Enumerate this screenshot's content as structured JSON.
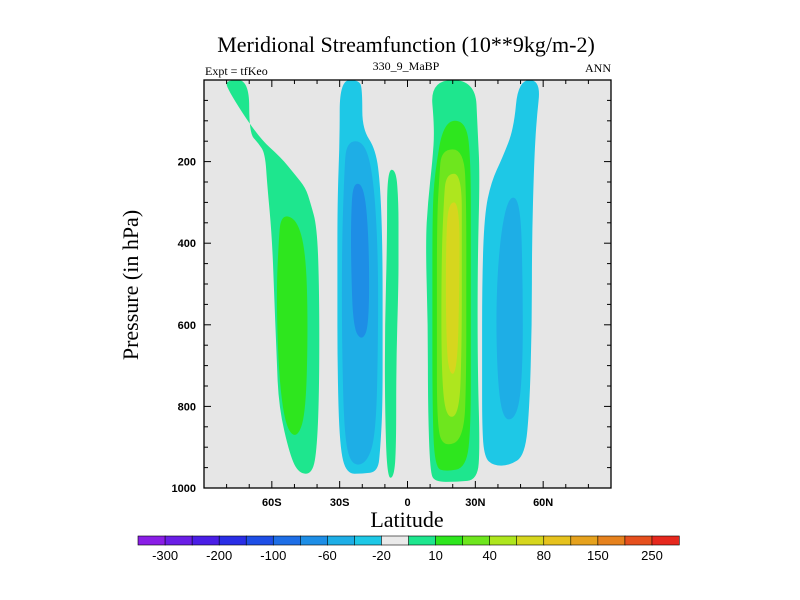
{
  "chart_data": {
    "type": "contour",
    "title": "Meridional Streamfunction (10**9kg/m-2)",
    "subtitle_left": "Expt = tfKeo",
    "subtitle_center": "330_9_MaBP",
    "subtitle_right": "ANN",
    "xlabel": "Latitude",
    "ylabel": "Pressure (in hPa)",
    "xlim": [
      -90,
      90
    ],
    "ylim": [
      1000,
      0
    ],
    "x_ticks": [
      {
        "value": -60,
        "label": "60S"
      },
      {
        "value": -30,
        "label": "30S"
      },
      {
        "value": 0,
        "label": "0"
      },
      {
        "value": 30,
        "label": "30N"
      },
      {
        "value": 60,
        "label": "60N"
      }
    ],
    "y_ticks": [
      {
        "value": 200,
        "label": "200"
      },
      {
        "value": 400,
        "label": "400"
      },
      {
        "value": 600,
        "label": "600"
      },
      {
        "value": 800,
        "label": "800"
      },
      {
        "value": 1000,
        "label": "1000"
      }
    ],
    "missing_color": "#e6e6e6",
    "colorbar": {
      "levels": [
        -300,
        -250,
        -200,
        -150,
        -100,
        -80,
        -60,
        -40,
        -20,
        -10,
        10,
        20,
        40,
        60,
        80,
        100,
        150,
        200,
        250,
        300
      ],
      "labels": [
        "-300",
        "-200",
        "-100",
        "-60",
        "-20",
        "10",
        "40",
        "80",
        "150",
        "250"
      ],
      "colors": [
        "#8a1ee6",
        "#6a1ee6",
        "#4a1ee6",
        "#2a2ee6",
        "#1e4ee6",
        "#1e6ee6",
        "#1e8ee6",
        "#1eaee6",
        "#1ec8e6",
        "#eaeaea",
        "#1ee68e",
        "#2ee61e",
        "#6ee61e",
        "#aee61e",
        "#d6d61e",
        "#e6c21e",
        "#e6a21e",
        "#e6821e",
        "#e6501e",
        "#e6281e"
      ]
    },
    "regions": [
      {
        "name": "sh-polar-cell",
        "value": 15,
        "points": [
          [
            -80,
            0
          ],
          [
            -70,
            0
          ],
          [
            -70,
            130
          ],
          [
            -66,
            155
          ],
          [
            -63,
            180
          ],
          [
            -62,
            260
          ],
          [
            -60,
            380
          ],
          [
            -59,
            520
          ],
          [
            -58,
            660
          ],
          [
            -57,
            800
          ],
          [
            -52,
            920
          ],
          [
            -48,
            965
          ],
          [
            -42,
            965
          ],
          [
            -40,
            900
          ],
          [
            -39,
            750
          ],
          [
            -39,
            520
          ],
          [
            -40,
            360
          ],
          [
            -43,
            300
          ],
          [
            -45,
            265
          ],
          [
            -50,
            230
          ],
          [
            -56,
            190
          ],
          [
            -66,
            140
          ],
          [
            -80,
            20
          ]
        ]
      },
      {
        "name": "sh-polar-core",
        "value": 25,
        "points": [
          [
            -56,
            330
          ],
          [
            -49,
            340
          ],
          [
            -45,
            420
          ],
          [
            -44,
            600
          ],
          [
            -45,
            820
          ],
          [
            -49,
            880
          ],
          [
            -54,
            850
          ],
          [
            -57,
            720
          ],
          [
            -58,
            520
          ],
          [
            -57,
            400
          ]
        ]
      },
      {
        "name": "sh-ferrel-outer",
        "value": -15,
        "points": [
          [
            -30,
            0
          ],
          [
            -21,
            0
          ],
          [
            -20,
            30
          ],
          [
            -20,
            120
          ],
          [
            -14,
            170
          ],
          [
            -12,
            260
          ],
          [
            -11,
            420
          ],
          [
            -11,
            620
          ],
          [
            -11,
            800
          ],
          [
            -12,
            900
          ],
          [
            -13,
            960
          ],
          [
            -20,
            965
          ],
          [
            -27,
            965
          ],
          [
            -30,
            900
          ],
          [
            -31,
            700
          ],
          [
            -31,
            500
          ],
          [
            -31,
            300
          ],
          [
            -30,
            150
          ]
        ]
      },
      {
        "name": "sh-ferrel-inner",
        "value": -25,
        "points": [
          [
            -27,
            150
          ],
          [
            -19,
            150
          ],
          [
            -15,
            240
          ],
          [
            -13,
            420
          ],
          [
            -13,
            650
          ],
          [
            -14,
            870
          ],
          [
            -18,
            940
          ],
          [
            -25,
            945
          ],
          [
            -28,
            870
          ],
          [
            -29,
            650
          ],
          [
            -29,
            400
          ],
          [
            -28,
            230
          ]
        ]
      },
      {
        "name": "sh-ferrel-core",
        "value": -45,
        "points": [
          [
            -24,
            250
          ],
          [
            -19,
            260
          ],
          [
            -17,
            400
          ],
          [
            -17,
            600
          ],
          [
            -20,
            640
          ],
          [
            -24,
            610
          ],
          [
            -25,
            450
          ],
          [
            -25,
            330
          ]
        ]
      },
      {
        "name": "equatorial-strip",
        "value": 15,
        "points": [
          [
            -9,
            220
          ],
          [
            -5,
            220
          ],
          [
            -4,
            300
          ],
          [
            -4,
            400
          ],
          [
            -4,
            500
          ],
          [
            -5,
            700
          ],
          [
            -5,
            900
          ],
          [
            -6,
            975
          ],
          [
            -9,
            975
          ],
          [
            -10,
            800
          ],
          [
            -10,
            600
          ],
          [
            -9,
            400
          ]
        ]
      },
      {
        "name": "nh-hadley-outer",
        "value": 15,
        "points": [
          [
            10,
            0
          ],
          [
            30,
            0
          ],
          [
            31,
            120
          ],
          [
            32,
            230
          ],
          [
            31,
            450
          ],
          [
            31,
            700
          ],
          [
            32,
            900
          ],
          [
            31,
            980
          ],
          [
            22,
            985
          ],
          [
            12,
            985
          ],
          [
            10,
            960
          ],
          [
            9,
            800
          ],
          [
            9,
            600
          ],
          [
            8,
            400
          ],
          [
            9,
            300
          ],
          [
            11,
            200
          ],
          [
            12,
            120
          ]
        ]
      },
      {
        "name": "nh-hadley-mid",
        "value": 25,
        "points": [
          [
            16,
            100
          ],
          [
            26,
            100
          ],
          [
            28,
            200
          ],
          [
            28,
            400
          ],
          [
            28,
            650
          ],
          [
            28,
            850
          ],
          [
            26,
            950
          ],
          [
            17,
            960
          ],
          [
            12,
            950
          ],
          [
            11,
            800
          ],
          [
            11,
            550
          ],
          [
            11,
            330
          ],
          [
            12,
            230
          ]
        ]
      },
      {
        "name": "nh-hadley-inner",
        "value": 50,
        "points": [
          [
            15,
            170
          ],
          [
            25,
            170
          ],
          [
            26,
            300
          ],
          [
            26,
            500
          ],
          [
            26,
            720
          ],
          [
            25,
            880
          ],
          [
            16,
            900
          ],
          [
            13,
            850
          ],
          [
            13,
            600
          ],
          [
            13,
            350
          ],
          [
            14,
            240
          ]
        ]
      },
      {
        "name": "nh-hadley-core",
        "value": 70,
        "points": [
          [
            17,
            230
          ],
          [
            24,
            230
          ],
          [
            24,
            400
          ],
          [
            24,
            650
          ],
          [
            23,
            820
          ],
          [
            17,
            830
          ],
          [
            15,
            720
          ],
          [
            15,
            450
          ],
          [
            16,
            300
          ]
        ]
      },
      {
        "name": "nh-hadley-peak",
        "value": 90,
        "points": [
          [
            18,
            300
          ],
          [
            23,
            300
          ],
          [
            23,
            500
          ],
          [
            22,
            720
          ],
          [
            18,
            720
          ],
          [
            17,
            600
          ],
          [
            17,
            400
          ]
        ]
      },
      {
        "name": "nh-ferrel-outer",
        "value": -15,
        "points": [
          [
            49,
            0
          ],
          [
            59,
            0
          ],
          [
            57,
            100
          ],
          [
            56,
            200
          ],
          [
            55,
            400
          ],
          [
            55,
            600
          ],
          [
            54,
            800
          ],
          [
            52,
            920
          ],
          [
            45,
            945
          ],
          [
            38,
            945
          ],
          [
            34,
            925
          ],
          [
            33,
            850
          ],
          [
            33,
            700
          ],
          [
            33,
            500
          ],
          [
            34,
            330
          ],
          [
            37,
            250
          ],
          [
            42,
            190
          ],
          [
            47,
            120
          ]
        ]
      },
      {
        "name": "nh-ferrel-core",
        "value": -25,
        "points": [
          [
            45,
            280
          ],
          [
            50,
            300
          ],
          [
            51,
            500
          ],
          [
            51,
            700
          ],
          [
            49,
            820
          ],
          [
            43,
            840
          ],
          [
            40,
            760
          ],
          [
            39,
            560
          ],
          [
            41,
            380
          ]
        ]
      }
    ]
  }
}
